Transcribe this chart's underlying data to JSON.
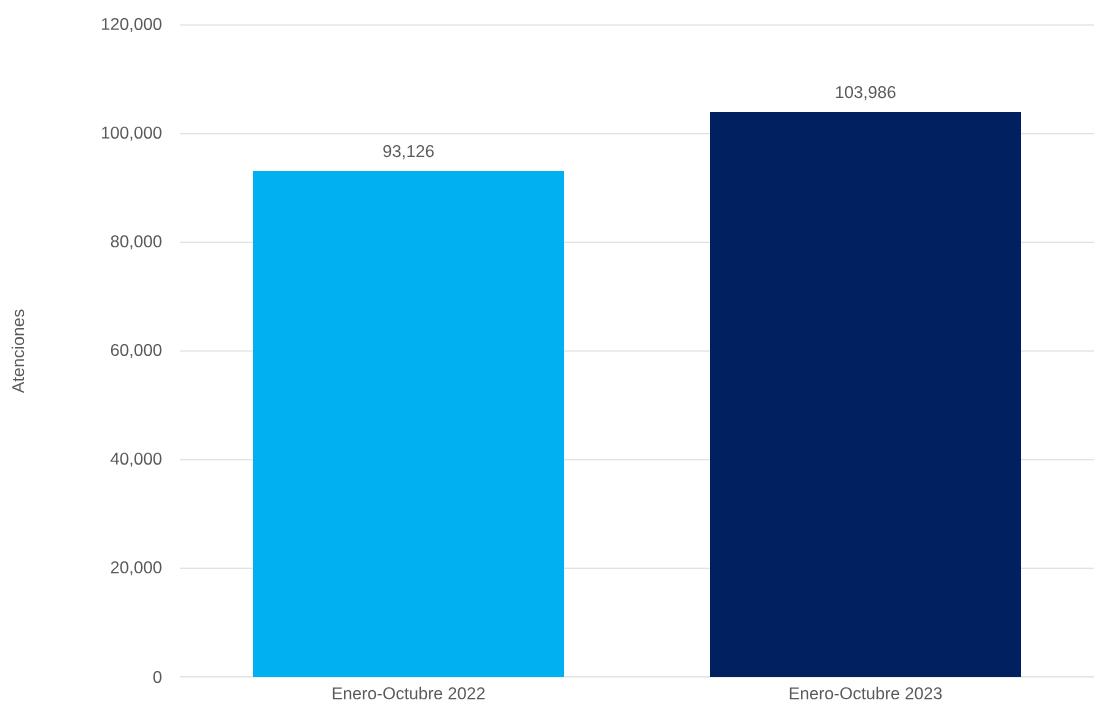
{
  "chart_data": {
    "type": "bar",
    "ylabel": "Atenciones",
    "categories": [
      "Enero-Octubre 2022",
      "Enero-Octubre 2023"
    ],
    "values": [
      93126,
      103986
    ],
    "value_labels": [
      "93,126",
      "103,986"
    ],
    "colors": [
      "#00b0f0",
      "#002060"
    ],
    "ylim": [
      0,
      120000
    ],
    "yticks": [
      {
        "value": 0,
        "label": "0"
      },
      {
        "value": 20000,
        "label": "20,000"
      },
      {
        "value": 40000,
        "label": "40,000"
      },
      {
        "value": 60000,
        "label": "60,000"
      },
      {
        "value": 80000,
        "label": "80,000"
      },
      {
        "value": 100000,
        "label": "100,000"
      },
      {
        "value": 120000,
        "label": "120,000"
      }
    ],
    "grid": "y"
  }
}
